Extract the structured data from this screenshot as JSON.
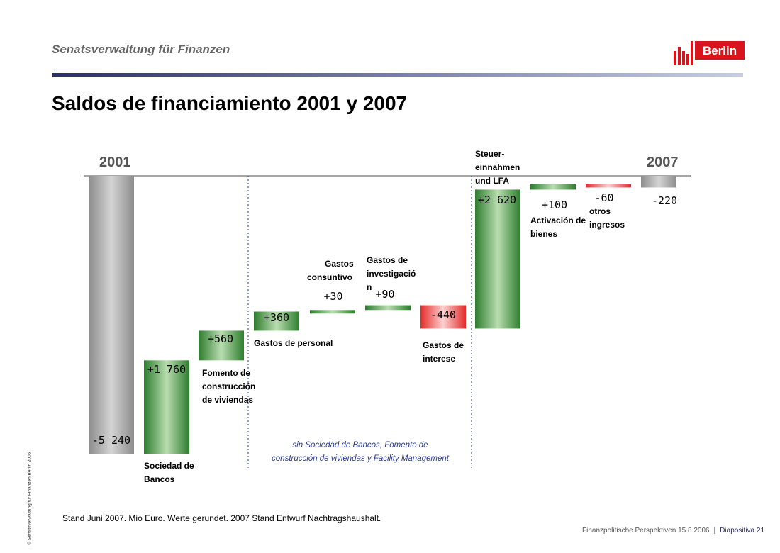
{
  "header": {
    "org": "Senatsverwaltung für Finanzen",
    "logo_text": "Berlin",
    "title": "Saldos de financiamiento 2001 y 2007"
  },
  "side_copyright": "© Senatsverwaltung für Finanzen Berlin 2006",
  "footnote": "Stand Juni 2007. Mio Euro. Werte gerundet. 2007 Stand Entwurf Nachtragshaushalt.",
  "footer": {
    "source": "Finanzpolitische Perspektiven 15.8.2006",
    "separator": "|",
    "slide": "Diapositiva 21"
  },
  "colors": {
    "total": "#a8a8a8",
    "increase": "#3c8f3c",
    "decrease": "#e84040",
    "note": "#2b3a8f",
    "rule": "#2b2f6a"
  },
  "chart_data": {
    "type": "waterfall",
    "unit": "Mio Euro",
    "start_label": "2001",
    "end_label": "2007",
    "steps": [
      {
        "name": "2001",
        "value": -5240,
        "kind": "total",
        "value_text": "-5 240",
        "label": ""
      },
      {
        "name": "Sociedad de Bancos",
        "value": 1760,
        "kind": "delta",
        "value_text": "+1 760",
        "label": "Sociedad de Bancos"
      },
      {
        "name": "Fomento de construcción de viviendas",
        "value": 560,
        "kind": "delta",
        "value_text": "+560",
        "label": "Fomento de construcción de viviendas"
      },
      {
        "name": "Gastos de personal",
        "value": 360,
        "kind": "delta",
        "value_text": "+360",
        "label": "Gastos de personal"
      },
      {
        "name": "Gastos consuntivo",
        "value": 30,
        "kind": "delta",
        "value_text": "+30",
        "label": "Gastos consuntivo"
      },
      {
        "name": "Gastos de investigación",
        "value": 90,
        "kind": "delta",
        "value_text": "+90",
        "label": "Gastos de investigació n"
      },
      {
        "name": "Gastos de interese",
        "value": -440,
        "kind": "delta",
        "value_text": "-440",
        "label": "Gastos de interese"
      },
      {
        "name": "Steuer-einnahmen und LFA",
        "value": 2620,
        "kind": "delta",
        "value_text": "+2 620",
        "label": "Steuer- einnahmen und LFA"
      },
      {
        "name": "Activación de bienes",
        "value": 100,
        "kind": "delta",
        "value_text": "+100",
        "label": "Activación de bienes"
      },
      {
        "name": "otros ingresos",
        "value": -60,
        "kind": "delta",
        "value_text": "-60",
        "label": "otros ingresos"
      },
      {
        "name": "2007",
        "value": -220,
        "kind": "total",
        "value_text": "-220",
        "label": ""
      }
    ],
    "note": "sin Sociedad de Bancos, Fomento de construcción de viviendas y Facility Management"
  }
}
